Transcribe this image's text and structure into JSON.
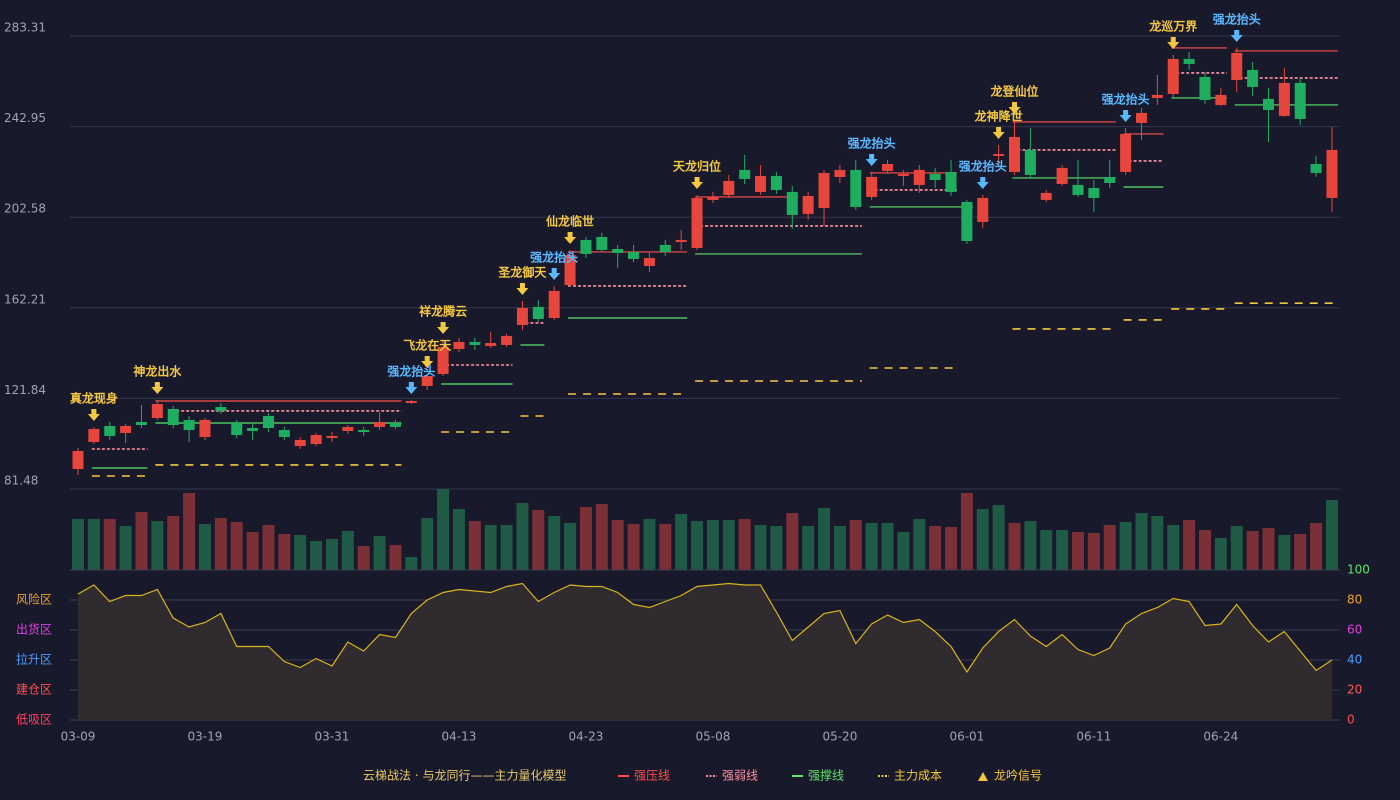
{
  "chart_data": [
    {
      "type": "candlestick",
      "subtitle": "云梯战法 · 与龙同行——主力量化模型",
      "categories": [
        "03-09",
        null,
        null,
        null,
        null,
        null,
        null,
        null,
        "03-19",
        null,
        null,
        null,
        null,
        null,
        null,
        null,
        "03-31",
        null,
        null,
        null,
        null,
        null,
        null,
        null,
        "04-13",
        null,
        null,
        null,
        null,
        null,
        null,
        null,
        "04-23",
        null,
        null,
        null,
        null,
        null,
        null,
        null,
        "05-08",
        null,
        null,
        null,
        null,
        null,
        null,
        null,
        "05-20",
        null,
        null,
        null,
        null,
        null,
        null,
        null,
        "06-01",
        null,
        null,
        null,
        null,
        null,
        null,
        null,
        "06-11",
        null,
        null,
        null,
        null,
        null,
        null,
        null,
        "06-24",
        null,
        null,
        null,
        null,
        null,
        null,
        null
      ],
      "open": [
        90.39,
        102.42,
        109.56,
        106.44,
        111.34,
        113.12,
        117.13,
        112.23,
        104.65,
        118.02,
        110.89,
        108.66,
        114.01,
        107.77,
        100.64,
        101.53,
        104.21,
        107.33,
        107.77,
        109.11,
        110.89,
        119.8,
        127.38,
        132.72,
        143.87,
        146.99,
        145.2,
        145.65,
        154.56,
        162.58,
        157.68,
        172.38,
        192.44,
        193.77,
        188.43,
        187.09,
        180.85,
        190.21,
        191.54,
        188.87,
        210.26,
        212.49,
        223.63,
        213.82,
        220.96,
        213.82,
        204.02,
        206.7,
        220.51,
        223.63,
        211.6,
        223.18,
        220.96,
        216.95,
        221.85,
        222.74,
        209.37,
        200.46,
        229.87,
        222.74,
        232.54,
        210.26,
        217.39,
        216.95,
        215.61,
        220.51,
        222.74,
        244.57,
        255.71,
        257.49,
        273.09,
        265.07,
        252.59,
        263.73,
        268.19,
        255.27,
        247.69,
        262.39,
        226.3,
        211.15
      ],
      "high": [
        99.75,
        109.11,
        111.34,
        110.45,
        118.91,
        121.14,
        118.47,
        114.01,
        113.12,
        119.8,
        112.23,
        110.45,
        115.35,
        109.11,
        104.65,
        106.44,
        106.88,
        110.0,
        109.11,
        115.79,
        112.23,
        121.14,
        132.72,
        147.88,
        148.77,
        148.77,
        151.44,
        150.55,
        165.26,
        165.7,
        171.94,
        187.98,
        193.77,
        195.56,
        190.21,
        190.21,
        187.09,
        192.44,
        196.89,
        212.49,
        213.82,
        221.4,
        230.31,
        225.86,
        222.74,
        216.5,
        213.82,
        223.63,
        225.86,
        228.08,
        222.74,
        228.08,
        223.63,
        225.86,
        224.52,
        228.08,
        210.26,
        212.49,
        234.77,
        245.91,
        242.34,
        214.72,
        225.86,
        228.08,
        219.17,
        228.08,
        242.34,
        251.26,
        265.96,
        274.87,
        276.21,
        267.3,
        260.17,
        277.99,
        271.75,
        260.17,
        269.08,
        264.62,
        229.87,
        242.79
      ],
      "low": [
        87.72,
        101.53,
        103.32,
        101.98,
        108.66,
        112.23,
        108.66,
        102.42,
        103.32,
        114.9,
        104.21,
        103.32,
        106.88,
        103.32,
        99.3,
        100.64,
        102.42,
        105.99,
        105.1,
        107.77,
        108.22,
        119.36,
        125.6,
        131.83,
        142.53,
        143.42,
        144.31,
        144.76,
        152.33,
        155.9,
        156.79,
        171.49,
        184.42,
        187.09,
        179.96,
        182.63,
        178.18,
        185.31,
        187.98,
        187.98,
        208.92,
        211.15,
        217.39,
        212.49,
        212.93,
        197.34,
        201.35,
        198.67,
        217.83,
        205.8,
        210.26,
        221.85,
        216.5,
        213.38,
        215.61,
        212.04,
        190.65,
        197.78,
        225.86,
        221.4,
        220.06,
        209.37,
        216.5,
        211.6,
        204.91,
        215.61,
        221.4,
        237.0,
        252.59,
        256.16,
        268.19,
        253.04,
        252.15,
        258.38,
        256.6,
        236.1,
        247.24,
        243.68,
        220.51,
        204.91
      ],
      "close": [
        98.41,
        108.22,
        105.1,
        109.56,
        110.0,
        119.36,
        110.0,
        107.77,
        112.23,
        116.24,
        105.54,
        107.33,
        108.66,
        104.65,
        103.32,
        105.54,
        105.1,
        109.11,
        106.88,
        111.34,
        109.11,
        120.69,
        131.83,
        144.76,
        146.99,
        145.65,
        146.54,
        149.66,
        162.14,
        157.23,
        169.71,
        185.75,
        186.2,
        187.98,
        186.64,
        183.97,
        184.42,
        187.09,
        192.44,
        211.15,
        211.6,
        218.73,
        219.62,
        220.96,
        214.72,
        203.58,
        212.04,
        222.29,
        223.63,
        207.14,
        220.51,
        226.3,
        221.85,
        223.63,
        219.17,
        213.82,
        191.99,
        211.15,
        230.76,
        238.33,
        221.4,
        213.38,
        224.52,
        212.49,
        211.15,
        217.83,
        239.67,
        249.03,
        257.05,
        273.09,
        270.86,
        254.82,
        257.05,
        275.76,
        260.61,
        250.36,
        262.39,
        246.35,
        222.29,
        232.54
      ],
      "up_color": "#e8463c",
      "down_color": "#1fae5f",
      "ylim": [
        81.48,
        283.31
      ],
      "yticks": [
        81.48,
        121.84,
        162.21,
        202.58,
        242.95,
        283.31
      ],
      "grid": true,
      "lines": [
        {
          "name": "强压线",
          "color": "#ff4d4d",
          "dash": false,
          "segments": [
            {
              "from": 5,
              "to": 20,
              "value": 120.69
            },
            {
              "from": 31,
              "to": 38,
              "value": 187.09
            },
            {
              "from": 39,
              "to": 45,
              "value": 211.6
            },
            {
              "from": 50,
              "to": 55,
              "value": 222.29
            },
            {
              "from": 59,
              "to": 65,
              "value": 245.02
            },
            {
              "from": 66,
              "to": 68,
              "value": 239.67
            },
            {
              "from": 69,
              "to": 72,
              "value": 277.99
            },
            {
              "from": 73,
              "to": 79,
              "value": 276.65
            }
          ]
        },
        {
          "name": "强弱线",
          "color": "#ff8fa3",
          "dash": true,
          "segments": [
            {
              "from": 1,
              "to": 4,
              "value": 99.3
            },
            {
              "from": 6,
              "to": 20,
              "value": 116.24
            },
            {
              "from": 23,
              "to": 27,
              "value": 136.73
            },
            {
              "from": 28,
              "to": 29,
              "value": 155.45
            },
            {
              "from": 31,
              "to": 38,
              "value": 171.94
            },
            {
              "from": 39,
              "to": 49,
              "value": 198.67
            },
            {
              "from": 50,
              "to": 55,
              "value": 214.72
            },
            {
              "from": 59,
              "to": 65,
              "value": 232.54
            },
            {
              "from": 66,
              "to": 68,
              "value": 227.64
            },
            {
              "from": 69,
              "to": 72,
              "value": 266.85
            },
            {
              "from": 73,
              "to": 79,
              "value": 264.62
            }
          ]
        },
        {
          "name": "强撑线",
          "color": "#5be36a",
          "dash": false,
          "segments": [
            {
              "from": 1,
              "to": 4,
              "value": 90.83
            },
            {
              "from": 5,
              "to": 20,
              "value": 110.89
            },
            {
              "from": 23,
              "to": 27,
              "value": 128.27
            },
            {
              "from": 28,
              "to": 29,
              "value": 145.65
            },
            {
              "from": 31,
              "to": 38,
              "value": 157.68
            },
            {
              "from": 39,
              "to": 49,
              "value": 186.2
            },
            {
              "from": 50,
              "to": 56,
              "value": 207.14
            },
            {
              "from": 59,
              "to": 65,
              "value": 220.06
            },
            {
              "from": 66,
              "to": 68,
              "value": 216.05
            },
            {
              "from": 69,
              "to": 72,
              "value": 255.71
            },
            {
              "from": 73,
              "to": 79,
              "value": 252.59
            }
          ]
        },
        {
          "name": "主力成本",
          "color": "#f5c842",
          "dash": true,
          "segments": [
            {
              "from": 1,
              "to": 4,
              "value": 87.27
            },
            {
              "from": 5,
              "to": 20,
              "value": 92.18
            },
            {
              "from": 23,
              "to": 27,
              "value": 106.88
            },
            {
              "from": 28,
              "to": 29,
              "value": 114.01
            },
            {
              "from": 31,
              "to": 38,
              "value": 123.81
            },
            {
              "from": 39,
              "to": 49,
              "value": 129.6
            },
            {
              "from": 50,
              "to": 55,
              "value": 135.39
            },
            {
              "from": 59,
              "to": 65,
              "value": 152.78
            },
            {
              "from": 66,
              "to": 68,
              "value": 156.79
            },
            {
              "from": 69,
              "to": 72,
              "value": 161.69
            },
            {
              "from": 73,
              "to": 79,
              "value": 164.27
            }
          ]
        }
      ],
      "signals": {
        "name": "龙吟信号",
        "color": "#f5c842",
        "points": [
          {
            "index": 1,
            "label": "真龙现身",
            "color": "#f5c842"
          },
          {
            "index": 5,
            "label": "神龙出水",
            "color": "#f5c842"
          },
          {
            "index": 21,
            "label": "强龙抬头",
            "color": "#5ab8ff"
          },
          {
            "index": 22,
            "label": "飞龙在天",
            "color": "#f5c842"
          },
          {
            "index": 23,
            "label": "祥龙腾云",
            "color": "#f5c842"
          },
          {
            "index": 28,
            "label": "圣龙御天",
            "color": "#f5c842"
          },
          {
            "index": 30,
            "label": "强龙抬头",
            "color": "#5ab8ff"
          },
          {
            "index": 31,
            "label": "仙龙临世",
            "color": "#f5c842"
          },
          {
            "index": 39,
            "label": "天龙归位",
            "color": "#f5c842"
          },
          {
            "index": 50,
            "label": "强龙抬头",
            "color": "#5ab8ff"
          },
          {
            "index": 57,
            "label": "强龙抬头",
            "color": "#5ab8ff"
          },
          {
            "index": 58,
            "label": "龙神降世",
            "color": "#f5c842"
          },
          {
            "index": 59,
            "label": "龙登仙位",
            "color": "#f5c842"
          },
          {
            "index": 66,
            "label": "强龙抬头",
            "color": "#5ab8ff"
          },
          {
            "index": 69,
            "label": "龙巡万界",
            "color": "#f5c842"
          },
          {
            "index": 73,
            "label": "强龙抬头",
            "color": "#5ab8ff"
          }
        ]
      }
    },
    {
      "type": "bar",
      "values": [
        51,
        51,
        51,
        44,
        58,
        49,
        54,
        77,
        46,
        52,
        48,
        38,
        45,
        36,
        35,
        29,
        31,
        39,
        24,
        34,
        25,
        13,
        52,
        81,
        61,
        49,
        45,
        45,
        67,
        60,
        54,
        47,
        63,
        66,
        50,
        46,
        51,
        46,
        56,
        49,
        50,
        50,
        51,
        45,
        44,
        57,
        44,
        62,
        44,
        50,
        47,
        47,
        38,
        51,
        44,
        43,
        77,
        61,
        65,
        47,
        49,
        40,
        40,
        38,
        37,
        45,
        48,
        57,
        54,
        45,
        50,
        40,
        32,
        44,
        39,
        42,
        35,
        36,
        47,
        70
      ],
      "colors": [
        "#1f5a44",
        "#1f5a44",
        "#7a3036",
        "#1f5a44",
        "#7a3036",
        "#1f5a44",
        "#7a3036",
        "#7a3036",
        "#1f5a44",
        "#7a3036",
        "#7a3036",
        "#7a3036",
        "#7a3036",
        "#7a3036",
        "#1f5a44",
        "#1f5a44",
        "#1f5a44",
        "#1f5a44",
        "#7a3036",
        "#1f5a44",
        "#7a3036",
        "#1f5a44",
        "#1f5a44",
        "#1f5a44",
        "#1f5a44",
        "#7a3036",
        "#1f5a44",
        "#1f5a44",
        "#1f5a44",
        "#7a3036",
        "#1f5a44",
        "#1f5a44",
        "#7a3036",
        "#7a3036",
        "#7a3036",
        "#7a3036",
        "#1f5a44",
        "#7a3036",
        "#1f5a44",
        "#1f5a44",
        "#1f5a44",
        "#1f5a44",
        "#7a3036",
        "#1f5a44",
        "#1f5a44",
        "#7a3036",
        "#1f5a44",
        "#1f5a44",
        "#1f5a44",
        "#7a3036",
        "#1f5a44",
        "#1f5a44",
        "#1f5a44",
        "#1f5a44",
        "#7a3036",
        "#7a3036",
        "#7a3036",
        "#1f5a44",
        "#1f5a44",
        "#7a3036",
        "#1f5a44",
        "#1f5a44",
        "#1f5a44",
        "#7a3036",
        "#7a3036",
        "#7a3036",
        "#1f5a44",
        "#1f5a44",
        "#1f5a44",
        "#1f5a44",
        "#7a3036",
        "#7a3036",
        "#1f5a44",
        "#1f5a44",
        "#7a3036",
        "#7a3036",
        "#1f5a44",
        "#7a3036",
        "#7a3036",
        "#1f5a44"
      ],
      "ylim": [
        0,
        81
      ]
    },
    {
      "type": "line",
      "values": [
        84,
        90,
        79,
        83,
        83,
        87,
        68,
        62,
        65,
        71,
        49,
        49,
        49,
        39,
        35,
        41,
        36,
        52,
        46,
        57,
        55,
        71,
        80,
        85,
        87,
        86,
        85,
        89,
        91,
        79,
        85,
        90,
        89,
        89,
        85,
        77,
        75,
        79,
        83,
        89,
        90,
        91,
        90,
        90,
        72,
        53,
        62,
        71,
        73,
        51,
        64,
        70,
        65,
        67,
        59,
        49,
        32,
        48,
        59,
        67,
        56,
        49,
        57,
        47,
        43,
        48,
        64,
        71,
        75,
        81,
        79,
        63,
        64,
        77,
        63,
        52,
        59,
        46,
        33,
        40
      ],
      "color": "#d9b51c",
      "ylim": [
        0,
        100
      ],
      "yticks": [
        0,
        20,
        40,
        60,
        80,
        100
      ],
      "ytick_colors": [
        "#ff4d4d",
        "#ff5a5a",
        "#4a9eff",
        "#e040e0",
        "#f0a030",
        "#5be36a"
      ],
      "grid": true,
      "zones": [
        {
          "value": 80,
          "label": "风险区",
          "color": "#f0a030"
        },
        {
          "value": 60,
          "label": "出货区",
          "color": "#e040e0"
        },
        {
          "value": 40,
          "label": "拉升区",
          "color": "#4a9eff"
        },
        {
          "value": 20,
          "label": "建仓区",
          "color": "#ff5050"
        },
        {
          "value": 0,
          "label": "低吸区",
          "color": "#ff4060"
        }
      ]
    }
  ]
}
